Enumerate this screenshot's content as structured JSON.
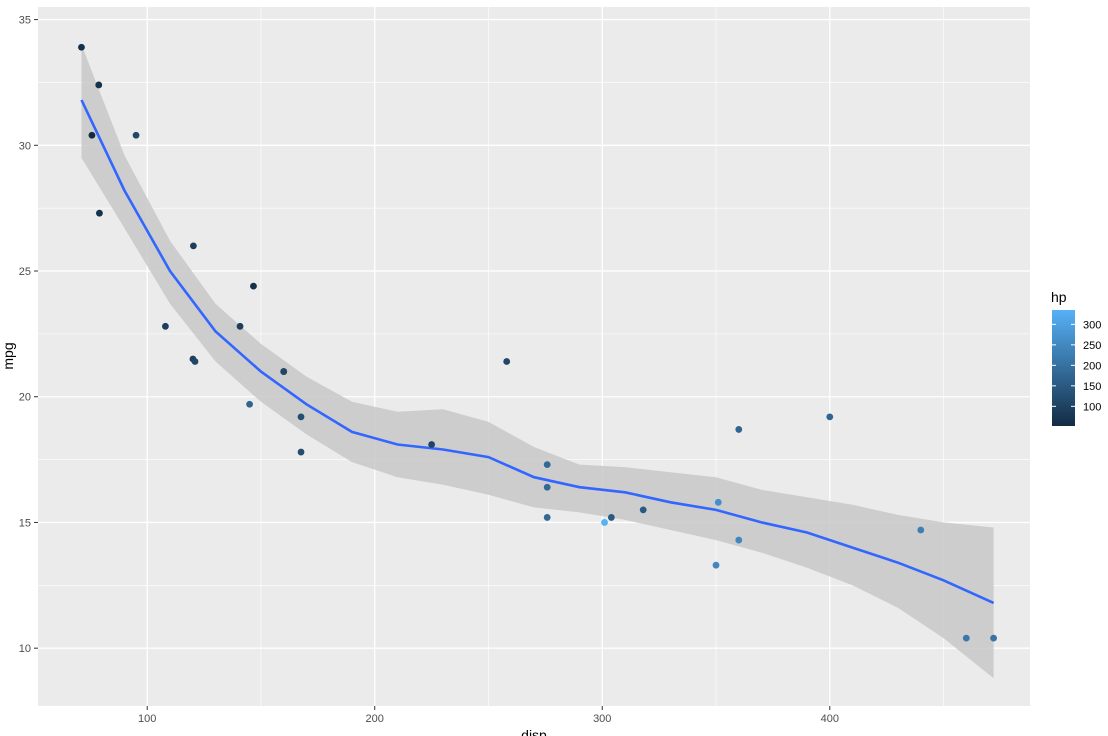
{
  "chart_data": {
    "type": "scatter",
    "xlabel": "disp",
    "ylabel": "mpg",
    "xlim": [
      52,
      488
    ],
    "ylim": [
      7.7,
      35.5
    ],
    "x_ticks": [
      100,
      200,
      300,
      400
    ],
    "y_ticks": [
      10,
      15,
      20,
      25,
      30,
      35
    ],
    "grid": true,
    "theme": "ggplot2 grey",
    "colors": {
      "panel_bg": "#EBEBEB",
      "grid": "#FFFFFF",
      "smooth_line": "#3366FF",
      "ribbon": "#C8C8C8",
      "color_low": "#132B43",
      "color_high": "#56B1F7"
    },
    "points": [
      {
        "disp": 160,
        "mpg": 21.0,
        "hp": 110
      },
      {
        "disp": 160,
        "mpg": 21.0,
        "hp": 110
      },
      {
        "disp": 108,
        "mpg": 22.8,
        "hp": 93
      },
      {
        "disp": 258,
        "mpg": 21.4,
        "hp": 110
      },
      {
        "disp": 360,
        "mpg": 18.7,
        "hp": 175
      },
      {
        "disp": 225,
        "mpg": 18.1,
        "hp": 105
      },
      {
        "disp": 360,
        "mpg": 14.3,
        "hp": 245
      },
      {
        "disp": 146.7,
        "mpg": 24.4,
        "hp": 62
      },
      {
        "disp": 140.8,
        "mpg": 22.8,
        "hp": 95
      },
      {
        "disp": 167.6,
        "mpg": 19.2,
        "hp": 123
      },
      {
        "disp": 167.6,
        "mpg": 17.8,
        "hp": 123
      },
      {
        "disp": 275.8,
        "mpg": 16.4,
        "hp": 180
      },
      {
        "disp": 275.8,
        "mpg": 17.3,
        "hp": 180
      },
      {
        "disp": 275.8,
        "mpg": 15.2,
        "hp": 180
      },
      {
        "disp": 472,
        "mpg": 10.4,
        "hp": 205
      },
      {
        "disp": 460,
        "mpg": 10.4,
        "hp": 215
      },
      {
        "disp": 440,
        "mpg": 14.7,
        "hp": 230
      },
      {
        "disp": 78.7,
        "mpg": 32.4,
        "hp": 66
      },
      {
        "disp": 75.7,
        "mpg": 30.4,
        "hp": 52
      },
      {
        "disp": 71.1,
        "mpg": 33.9,
        "hp": 65
      },
      {
        "disp": 120.1,
        "mpg": 21.5,
        "hp": 97
      },
      {
        "disp": 318,
        "mpg": 15.5,
        "hp": 150
      },
      {
        "disp": 304,
        "mpg": 15.2,
        "hp": 150
      },
      {
        "disp": 350,
        "mpg": 13.3,
        "hp": 245
      },
      {
        "disp": 400,
        "mpg": 19.2,
        "hp": 175
      },
      {
        "disp": 79,
        "mpg": 27.3,
        "hp": 66
      },
      {
        "disp": 120.3,
        "mpg": 26.0,
        "hp": 91
      },
      {
        "disp": 95.1,
        "mpg": 30.4,
        "hp": 113
      },
      {
        "disp": 351,
        "mpg": 15.8,
        "hp": 264
      },
      {
        "disp": 145,
        "mpg": 19.7,
        "hp": 175
      },
      {
        "disp": 301,
        "mpg": 15.0,
        "hp": 335
      },
      {
        "disp": 121,
        "mpg": 21.4,
        "hp": 109
      }
    ],
    "smooth": {
      "method": "loess",
      "x": [
        71.1,
        90,
        110,
        130,
        150,
        170,
        190,
        210,
        230,
        250,
        270,
        290,
        310,
        330,
        350,
        370,
        390,
        410,
        430,
        450,
        472
      ],
      "y": [
        31.8,
        28.2,
        25.0,
        22.6,
        21.0,
        19.7,
        18.6,
        18.1,
        17.9,
        17.6,
        16.8,
        16.4,
        16.2,
        15.8,
        15.5,
        15.0,
        14.6,
        14.0,
        13.4,
        12.7,
        11.8
      ],
      "lower": [
        29.5,
        26.7,
        23.7,
        21.4,
        19.8,
        18.5,
        17.4,
        16.8,
        16.5,
        16.1,
        15.6,
        15.4,
        15.1,
        14.7,
        14.3,
        13.8,
        13.2,
        12.5,
        11.6,
        10.4,
        8.8
      ],
      "upper": [
        34.0,
        29.6,
        26.2,
        23.7,
        22.1,
        20.8,
        19.8,
        19.4,
        19.5,
        19.0,
        18.0,
        17.3,
        17.2,
        17.0,
        16.8,
        16.3,
        16.0,
        15.7,
        15.3,
        15.0,
        14.8
      ]
    },
    "legend": {
      "title": "hp",
      "range": [
        52,
        335
      ],
      "ticks": [
        100,
        150,
        200,
        250,
        300
      ],
      "tick_labels": [
        "100",
        "150",
        "200",
        "250",
        "300"
      ],
      "placement": "right"
    }
  }
}
